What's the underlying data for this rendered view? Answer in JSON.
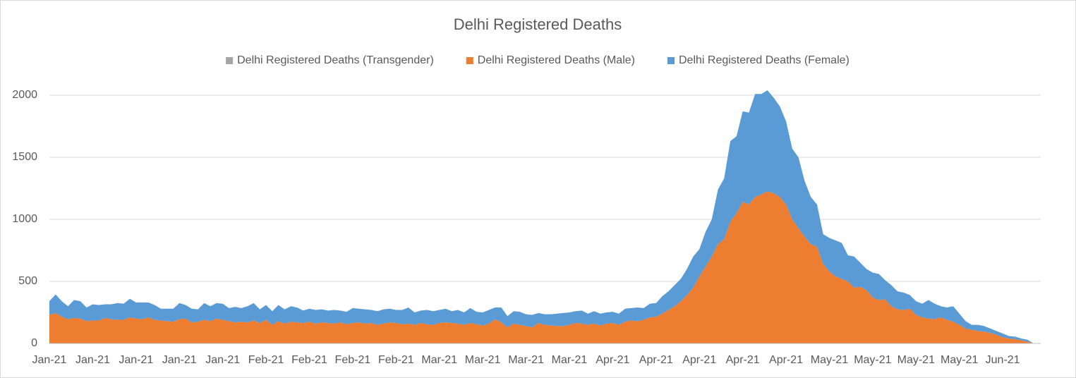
{
  "chart_data": {
    "type": "stacked_area",
    "title": "Delhi Registered Deaths",
    "categories": [
      "Jan-21",
      null,
      null,
      null,
      null,
      null,
      null,
      "Jan-21",
      null,
      null,
      null,
      null,
      null,
      null,
      "Jan-21",
      null,
      null,
      null,
      null,
      null,
      null,
      "Jan-21",
      null,
      null,
      null,
      null,
      null,
      null,
      "Jan-21",
      null,
      null,
      null,
      null,
      null,
      null,
      "Feb-21",
      null,
      null,
      null,
      null,
      null,
      null,
      "Feb-21",
      null,
      null,
      null,
      null,
      null,
      null,
      "Feb-21",
      null,
      null,
      null,
      null,
      null,
      null,
      "Feb-21",
      null,
      null,
      null,
      null,
      null,
      null,
      "Mar-21",
      null,
      null,
      null,
      null,
      null,
      null,
      "Mar-21",
      null,
      null,
      null,
      null,
      null,
      null,
      "Mar-21",
      null,
      null,
      null,
      null,
      null,
      null,
      "Mar-21",
      null,
      null,
      null,
      null,
      null,
      null,
      "Apr-21",
      null,
      null,
      null,
      null,
      null,
      null,
      "Apr-21",
      null,
      null,
      null,
      null,
      null,
      null,
      "Apr-21",
      null,
      null,
      null,
      null,
      null,
      null,
      "Apr-21",
      null,
      null,
      null,
      null,
      null,
      null,
      "Apr-21",
      null,
      null,
      null,
      null,
      null,
      null,
      "May-21",
      null,
      null,
      null,
      null,
      null,
      null,
      "May-21",
      null,
      null,
      null,
      null,
      null,
      null,
      "May-21",
      null,
      null,
      null,
      null,
      null,
      null,
      "May-21",
      null,
      null,
      null,
      null,
      null,
      null,
      "Jun-21",
      null,
      null,
      null,
      null,
      null
    ],
    "series": [
      {
        "name": "Delhi Registered Deaths (Transgender)",
        "color": "#a5a5a5",
        "values": [
          0,
          0,
          0,
          0,
          0,
          0,
          0,
          0,
          0,
          0,
          0,
          0,
          0,
          0,
          0,
          0,
          0,
          0,
          0,
          0,
          0,
          0,
          0,
          0,
          0,
          0,
          0,
          0,
          0,
          0,
          0,
          0,
          0,
          0,
          0,
          0,
          0,
          0,
          0,
          0,
          0,
          0,
          0,
          0,
          0,
          0,
          0,
          0,
          0,
          0,
          0,
          0,
          0,
          0,
          0,
          0,
          0,
          0,
          0,
          0,
          0,
          0,
          0,
          0,
          0,
          0,
          0,
          0,
          0,
          0,
          0,
          0,
          0,
          0,
          0,
          0,
          0,
          0,
          0,
          0,
          0,
          0,
          0,
          0,
          0,
          0,
          0,
          0,
          0,
          0,
          0,
          0,
          0,
          0,
          0,
          0,
          0,
          0,
          0,
          0,
          0,
          0,
          0,
          0,
          0,
          0,
          0,
          0,
          0,
          0,
          0,
          0,
          0,
          0,
          0,
          0,
          0,
          0,
          0,
          0,
          0,
          0,
          0,
          0,
          0,
          0,
          0,
          0,
          0,
          0,
          0,
          0,
          0,
          0,
          0,
          0,
          0,
          0,
          0,
          0,
          0,
          0,
          0,
          0,
          0,
          0,
          0,
          0,
          0,
          0,
          0,
          0,
          0,
          0,
          0,
          0,
          0,
          0,
          0,
          0
        ]
      },
      {
        "name": "Delhi Registered Deaths (Male)",
        "color": "#ed7d31",
        "values": [
          230,
          245,
          215,
          195,
          205,
          200,
          180,
          185,
          185,
          205,
          195,
          190,
          190,
          210,
          200,
          195,
          210,
          190,
          185,
          180,
          175,
          195,
          200,
          170,
          175,
          190,
          180,
          200,
          190,
          180,
          170,
          175,
          170,
          185,
          165,
          190,
          150,
          180,
          160,
          175,
          170,
          165,
          175,
          160,
          170,
          165,
          160,
          170,
          155,
          165,
          170,
          160,
          165,
          150,
          160,
          170,
          165,
          155,
          160,
          150,
          165,
          155,
          150,
          165,
          170,
          165,
          160,
          150,
          165,
          155,
          145,
          160,
          195,
          170,
          130,
          160,
          150,
          140,
          130,
          165,
          150,
          145,
          140,
          140,
          150,
          165,
          160,
          150,
          160,
          145,
          160,
          165,
          150,
          175,
          185,
          180,
          190,
          210,
          215,
          240,
          270,
          300,
          340,
          390,
          450,
          540,
          620,
          700,
          800,
          840,
          980,
          1050,
          1140,
          1120,
          1180,
          1200,
          1225,
          1210,
          1180,
          1120,
          1000,
          930,
          860,
          800,
          780,
          640,
          580,
          540,
          520,
          500,
          450,
          455,
          430,
          370,
          350,
          355,
          300,
          275,
          270,
          280,
          230,
          210,
          200,
          195,
          210,
          190,
          175,
          150,
          120,
          110,
          100,
          95,
          85,
          70,
          50,
          40,
          35,
          25,
          15,
          0
        ]
      },
      {
        "name": "Delhi Registered Deaths (Female)",
        "color": "#5b9bd5",
        "values": [
          110,
          150,
          125,
          105,
          145,
          140,
          110,
          130,
          125,
          110,
          120,
          135,
          130,
          150,
          130,
          135,
          120,
          120,
          95,
          100,
          105,
          130,
          110,
          110,
          100,
          135,
          120,
          125,
          130,
          105,
          125,
          110,
          130,
          140,
          110,
          120,
          110,
          130,
          115,
          125,
          120,
          100,
          105,
          110,
          105,
          100,
          110,
          95,
          100,
          120,
          110,
          115,
          105,
          110,
          115,
          110,
          105,
          115,
          130,
          100,
          100,
          115,
          110,
          105,
          110,
          95,
          110,
          100,
          120,
          100,
          105,
          110,
          95,
          120,
          90,
          100,
          105,
          95,
          100,
          80,
          85,
          90,
          100,
          105,
          100,
          95,
          105,
          90,
          100,
          95,
          90,
          90,
          90,
          105,
          100,
          110,
          95,
          110,
          110,
          140,
          150,
          170,
          180,
          210,
          250,
          220,
          280,
          300,
          440,
          490,
          650,
          620,
          730,
          740,
          830,
          810,
          815,
          770,
          730,
          670,
          570,
          570,
          450,
          380,
          340,
          240,
          270,
          290,
          290,
          210,
          250,
          195,
          170,
          200,
          210,
          155,
          170,
          145,
          140,
          110,
          110,
          110,
          150,
          125,
          90,
          100,
          125,
          90,
          60,
          40,
          50,
          45,
          35,
          30,
          30,
          20,
          20,
          15,
          15,
          0
        ]
      }
    ],
    "ylim": [
      0,
      2000
    ],
    "yticks": [
      0,
      500,
      1000,
      1500,
      2000
    ],
    "grid": true,
    "legend": "top"
  }
}
